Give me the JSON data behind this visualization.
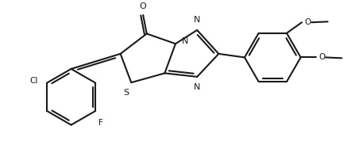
{
  "bg_color": "#ffffff",
  "line_color": "#1a1a1a",
  "line_width": 1.5,
  "figsize": [
    4.42,
    1.88
  ],
  "dpi": 100,
  "xlim": [
    0.0,
    9.5
  ],
  "ylim": [
    0.2,
    4.2
  ]
}
